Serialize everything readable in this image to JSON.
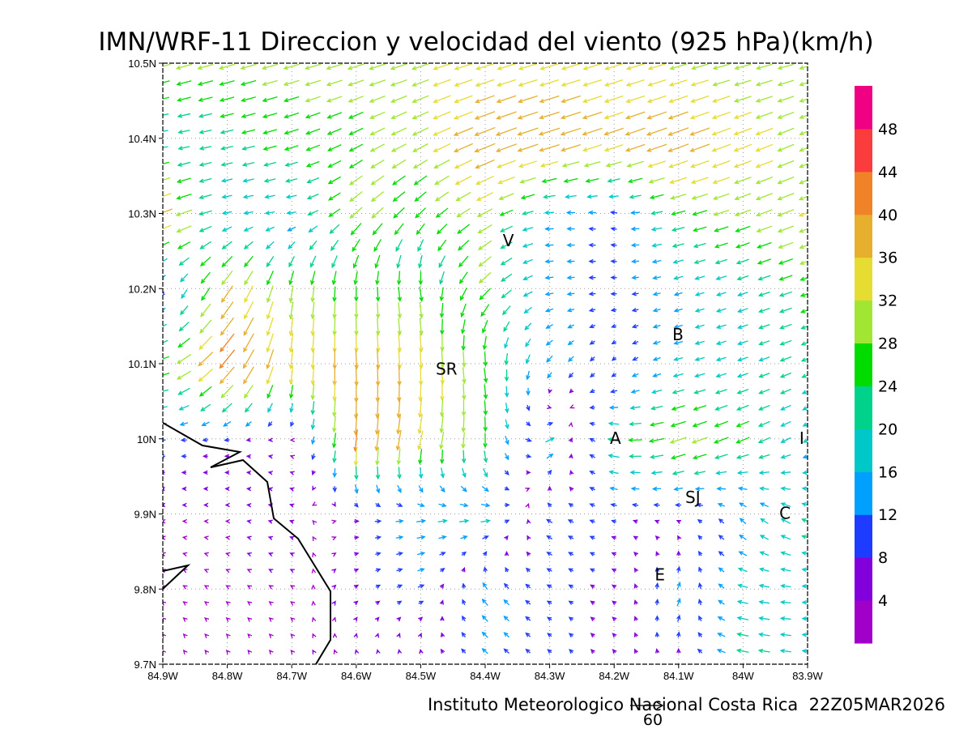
{
  "chart_data": {
    "type": "vector-field",
    "title": "IMN/WRF-11 Direccion y velocidad del viento (925 hPa)(km/h)",
    "footer": "Instituto Meteorologico Nacional Costa Rica  22Z05MAR2026",
    "units": "km/h",
    "reference_vector": {
      "value": 60,
      "label": "60"
    },
    "x_ticks": [
      "84.9W",
      "84.8W",
      "84.7W",
      "84.6W",
      "84.5W",
      "84.4W",
      "84.3W",
      "84.2W",
      "84.1W",
      "84W",
      "83.9W"
    ],
    "y_ticks": [
      "10.5N",
      "10.4N",
      "10.3N",
      "10.2N",
      "10.1N",
      "10N",
      "9.9N",
      "9.8N",
      "9.7N"
    ],
    "lon_range": [
      -84.9,
      -83.9
    ],
    "lat_range": [
      9.7,
      10.5
    ],
    "grid": "dotted",
    "colorbar": {
      "labels": [
        "4",
        "8",
        "12",
        "16",
        "20",
        "24",
        "28",
        "32",
        "36",
        "40",
        "44",
        "48"
      ],
      "bounds": [
        0,
        4,
        8,
        12,
        16,
        20,
        24,
        28,
        32,
        36,
        40,
        44,
        48,
        52
      ],
      "colors": [
        "#a000c8",
        "#8200dc",
        "#1e3cff",
        "#00a0ff",
        "#00c8c8",
        "#00d28c",
        "#00dc00",
        "#a0e632",
        "#e6dc32",
        "#e6af2d",
        "#f08228",
        "#fa3c3c",
        "#f00082"
      ]
    },
    "vector_grid_note": "coarse estimate of u,v (km/h) at 0.1 degree nodes; rows lat 10.5N to 9.7N, cols lon 84.9W to 83.9W",
    "vectors_uv": [
      [
        [
          -28,
          -8
        ],
        [
          -28,
          -8
        ],
        [
          -28,
          -8
        ],
        [
          -29,
          -9
        ],
        [
          -30,
          -10
        ],
        [
          -32,
          -10
        ],
        [
          -33,
          -10
        ],
        [
          -32,
          -10
        ],
        [
          -30,
          -9
        ],
        [
          -29,
          -8
        ],
        [
          -28,
          -8
        ]
      ],
      [
        [
          -18,
          -3
        ],
        [
          -22,
          -5
        ],
        [
          -25,
          -8
        ],
        [
          -24,
          -12
        ],
        [
          -28,
          -14
        ],
        [
          -38,
          -15
        ],
        [
          -38,
          -12
        ],
        [
          -35,
          -12
        ],
        [
          -38,
          -14
        ],
        [
          -32,
          -12
        ],
        [
          -28,
          -12
        ]
      ],
      [
        [
          -36,
          -14
        ],
        [
          -16,
          -3
        ],
        [
          -16,
          -2
        ],
        [
          -22,
          -20
        ],
        [
          -18,
          -18
        ],
        [
          -26,
          -14
        ],
        [
          -15,
          0
        ],
        [
          -10,
          2
        ],
        [
          -24,
          -6
        ],
        [
          -28,
          -10
        ],
        [
          -30,
          -12
        ]
      ],
      [
        [
          -4,
          -8
        ],
        [
          -20,
          -30
        ],
        [
          -5,
          -30
        ],
        [
          0,
          -25
        ],
        [
          4,
          -26
        ],
        [
          -20,
          -20
        ],
        [
          -14,
          -2
        ],
        [
          -10,
          0
        ],
        [
          -14,
          -4
        ],
        [
          -18,
          -6
        ],
        [
          -24,
          -8
        ]
      ],
      [
        [
          -26,
          -8
        ],
        [
          -28,
          -34
        ],
        [
          -4,
          -36
        ],
        [
          2,
          -38
        ],
        [
          2,
          -36
        ],
        [
          4,
          -26
        ],
        [
          -10,
          -12
        ],
        [
          -6,
          -6
        ],
        [
          -16,
          -4
        ],
        [
          -18,
          -6
        ],
        [
          -20,
          -8
        ]
      ],
      [
        [
          -10,
          0
        ],
        [
          -8,
          0
        ],
        [
          -3,
          1
        ],
        [
          -4,
          -40
        ],
        [
          -8,
          -34
        ],
        [
          0,
          -26
        ],
        [
          16,
          8
        ],
        [
          -22,
          4
        ],
        [
          -30,
          -10
        ],
        [
          -24,
          -10
        ],
        [
          -14,
          -8
        ]
      ],
      [
        [
          -4,
          0
        ],
        [
          -4,
          0
        ],
        [
          -6,
          2
        ],
        [
          8,
          0
        ],
        [
          16,
          2
        ],
        [
          18,
          2
        ],
        [
          -10,
          6
        ],
        [
          -8,
          2
        ],
        [
          -6,
          2
        ],
        [
          -10,
          10
        ],
        [
          -20,
          8
        ]
      ],
      [
        [
          -3,
          2
        ],
        [
          -3,
          2
        ],
        [
          -3,
          2
        ],
        [
          6,
          4
        ],
        [
          10,
          4
        ],
        [
          -10,
          12
        ],
        [
          -8,
          4
        ],
        [
          -6,
          4
        ],
        [
          6,
          14
        ],
        [
          -18,
          4
        ],
        [
          -18,
          0
        ]
      ],
      [
        [
          -2,
          3
        ],
        [
          -2,
          3
        ],
        [
          -2,
          3
        ],
        [
          -3,
          4
        ],
        [
          -4,
          5
        ],
        [
          -10,
          8
        ],
        [
          -6,
          6
        ],
        [
          -4,
          6
        ],
        [
          -2,
          6
        ],
        [
          -22,
          4
        ],
        [
          -18,
          2
        ]
      ]
    ],
    "stations": [
      {
        "label": "V",
        "lon": -84.364,
        "lat": 10.264
      },
      {
        "label": "SR",
        "lon": -84.46,
        "lat": 10.093
      },
      {
        "label": "B",
        "lon": -84.101,
        "lat": 10.139
      },
      {
        "label": "A",
        "lon": -84.198,
        "lat": 10.001
      },
      {
        "label": "I",
        "lon": -83.909,
        "lat": 10.001
      },
      {
        "label": "SJ",
        "lon": -84.078,
        "lat": 9.922
      },
      {
        "label": "C",
        "lon": -83.935,
        "lat": 9.901
      },
      {
        "label": "E",
        "lon": -84.129,
        "lat": 9.819
      }
    ]
  }
}
